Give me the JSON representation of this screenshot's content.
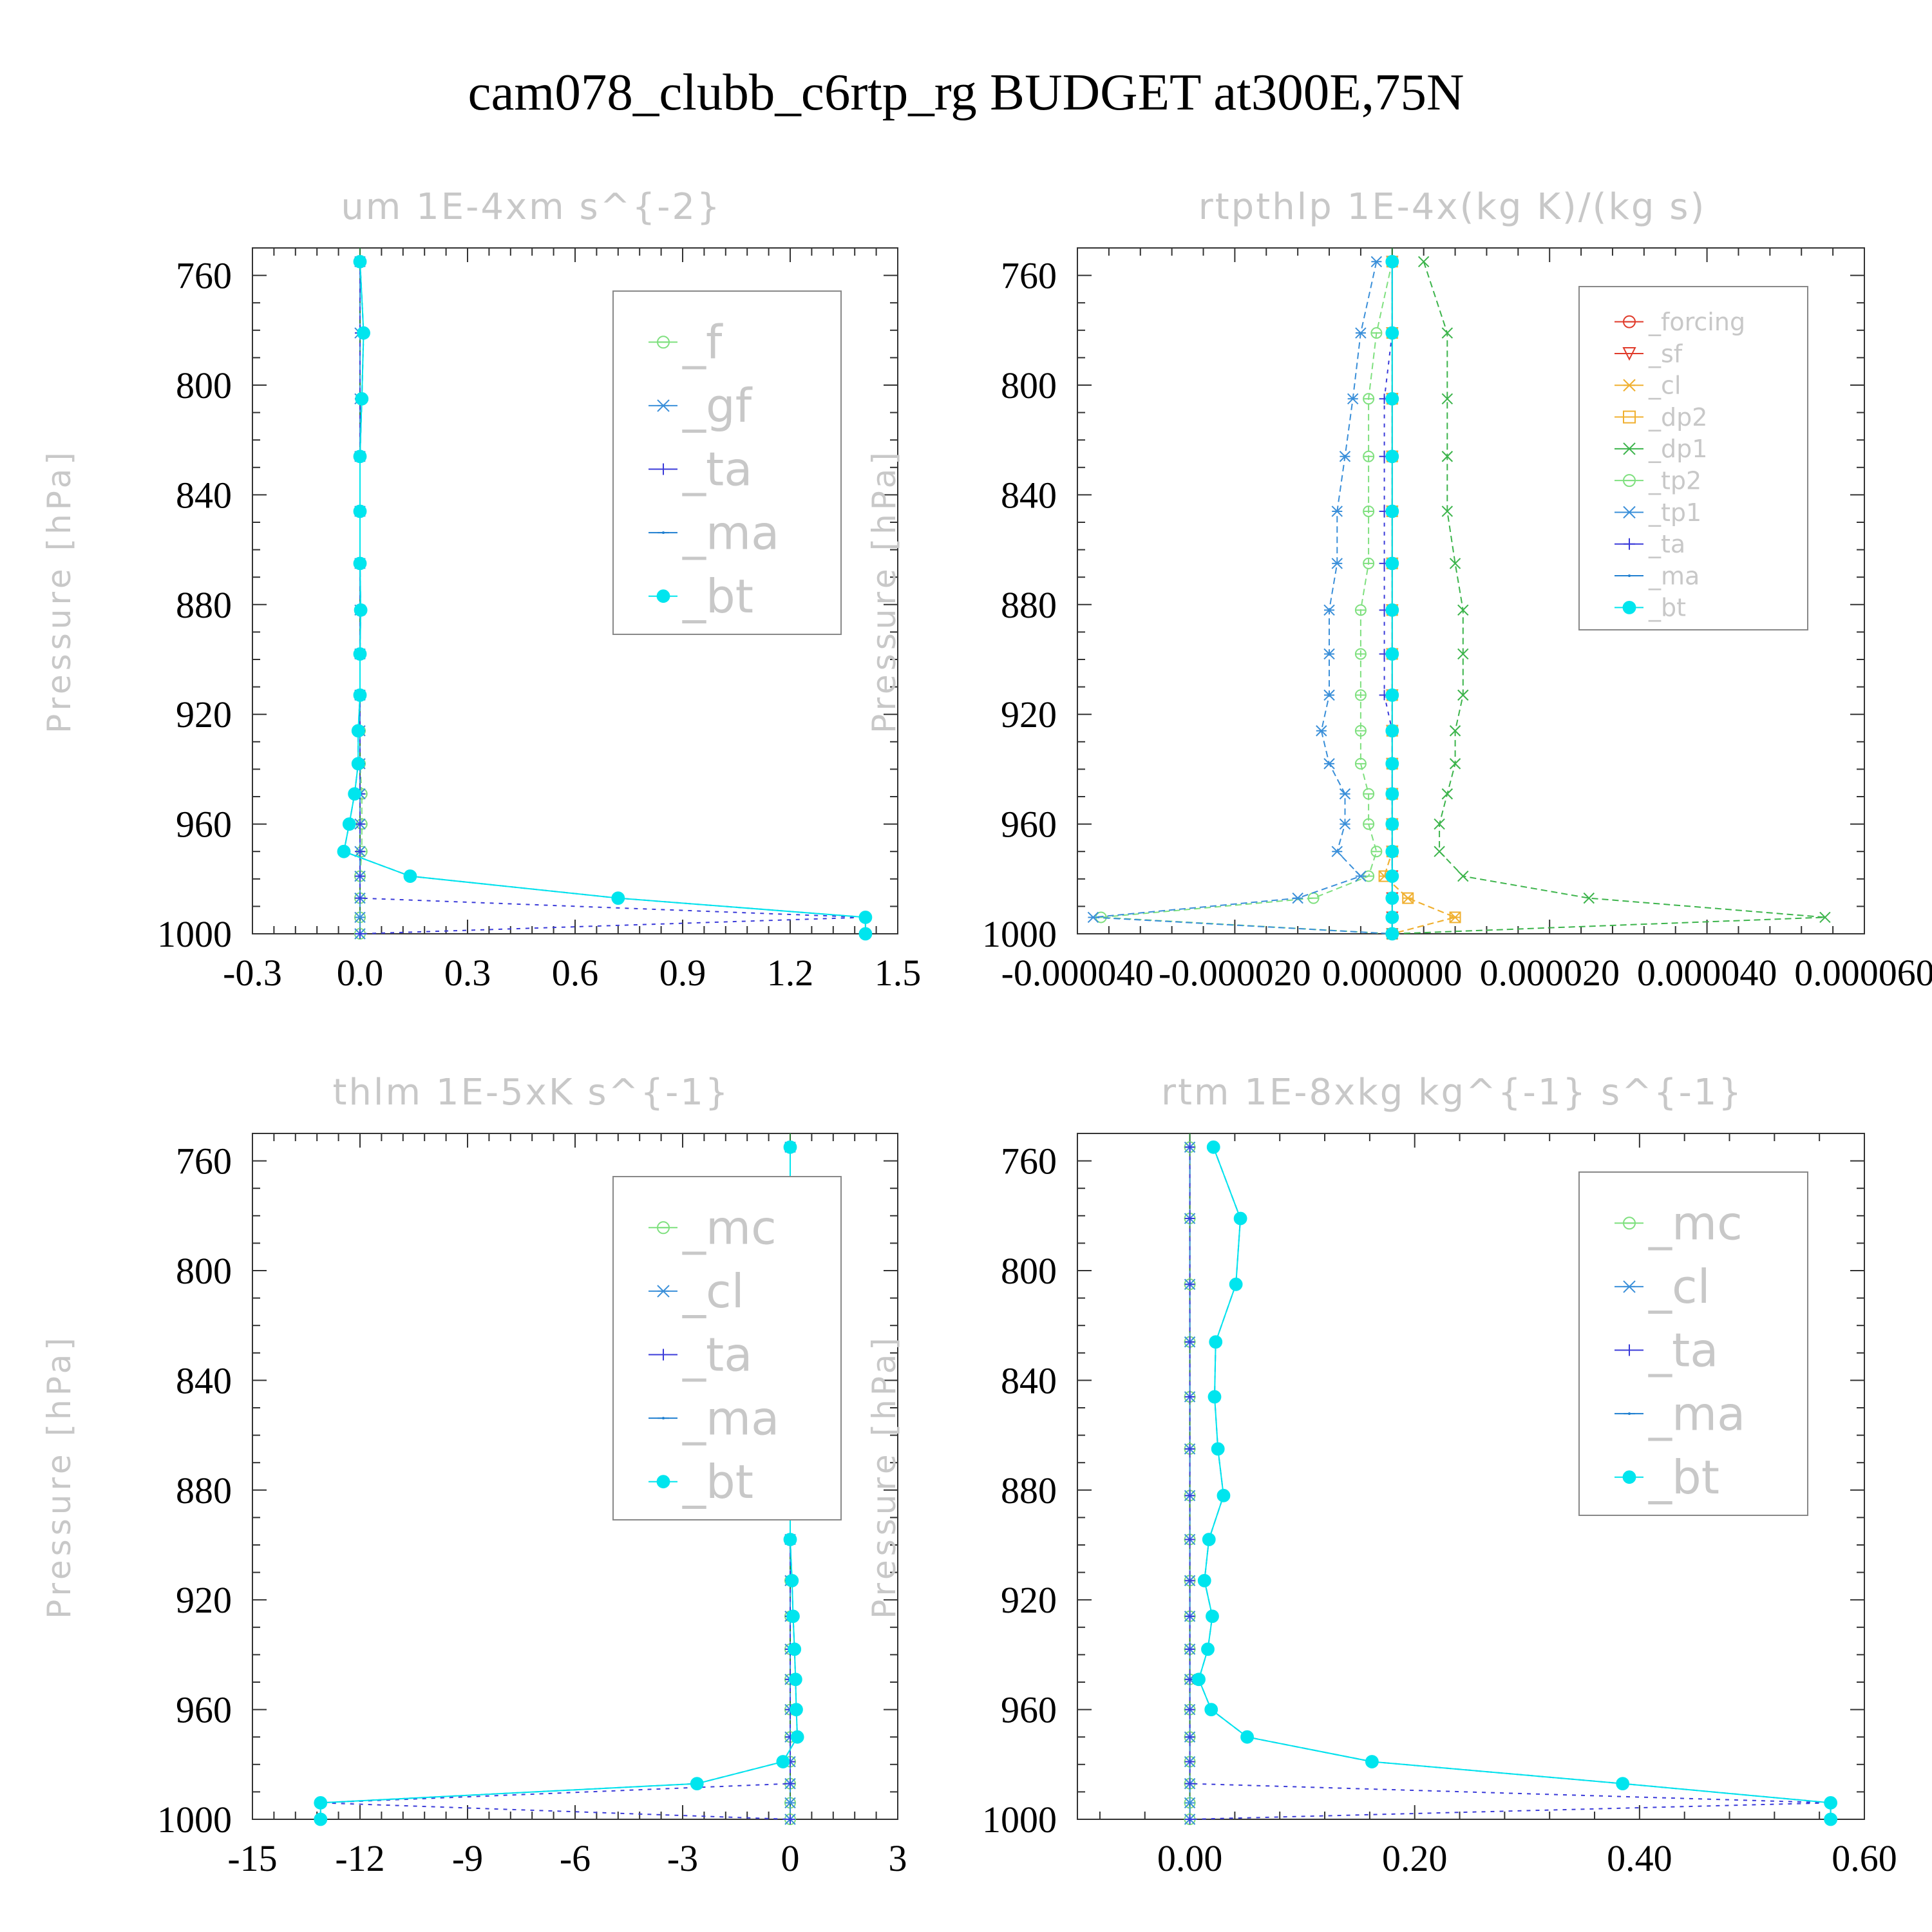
{
  "figure": {
    "title": "cam078_clubb_c6rtp_rg  BUDGET at300E,75N"
  },
  "colors": {
    "f": "#7fe07f",
    "mc": "#7fe07f",
    "gf": "#3a8fd9",
    "cl": "#3a8fd9",
    "ta": "#3b3bd9",
    "ma": "#1f7fd0",
    "bt": "#00e5ee",
    "forcing": "#e03a2a",
    "sf": "#e03a2a",
    "cl_orange": "#f0b030",
    "dp2": "#f0b030",
    "dp1": "#3cb44b",
    "tp2": "#7fe07f",
    "tp1": "#3a8fd9",
    "zero_line": "#2a7f3a"
  },
  "chart_data": [
    {
      "type": "line",
      "title": "um   1E-4xm s^{-2}",
      "ylabel": "Pressure [hPa]",
      "ylim": [
        1000,
        750
      ],
      "yticks": [
        "760",
        "800",
        "840",
        "880",
        "920",
        "960",
        "1000"
      ],
      "xlim": [
        -0.3,
        1.5
      ],
      "xticks": [
        "-0.3",
        "0.0",
        "0.3",
        "0.6",
        "0.9",
        "1.2",
        "1.5"
      ],
      "y": [
        755,
        781,
        805,
        826,
        846,
        865,
        882,
        898,
        913,
        926,
        938,
        949,
        960,
        970,
        979,
        987,
        994,
        1000
      ],
      "series": [
        {
          "name": "_f",
          "values": [
            0,
            0.01,
            0.005,
            0,
            0,
            0,
            0,
            0,
            0,
            0,
            0,
            0.005,
            0.005,
            0.005,
            0,
            0,
            0,
            0
          ]
        },
        {
          "name": "_gf",
          "values": [
            0,
            0,
            0,
            0,
            0,
            0,
            0,
            0,
            0,
            0,
            0,
            0,
            0,
            0,
            0,
            0,
            0,
            0
          ]
        },
        {
          "name": "_ta",
          "values": [
            0,
            0,
            0,
            0,
            0,
            0,
            0,
            0,
            0,
            0,
            0,
            0,
            0,
            0,
            0,
            0,
            1.41,
            0
          ]
        },
        {
          "name": "_ma",
          "values": [
            0,
            0.01,
            0.005,
            0,
            0,
            0,
            0.002,
            0,
            0,
            -0.005,
            -0.005,
            -0.015,
            -0.03,
            -0.045,
            0.14,
            0.72,
            1.41,
            1.41
          ]
        },
        {
          "name": "_bt",
          "values": [
            0,
            0.01,
            0.005,
            0,
            0,
            0,
            0.002,
            0,
            0,
            -0.005,
            -0.005,
            -0.015,
            -0.03,
            -0.045,
            0.14,
            0.72,
            1.41,
            1.41
          ]
        }
      ]
    },
    {
      "type": "line",
      "title": "rtpthlp   1E-4x(kg K)/(kg s)",
      "ylabel": "Pressure [hPa]",
      "ylim": [
        1000,
        750
      ],
      "yticks": [
        "760",
        "800",
        "840",
        "880",
        "920",
        "960",
        "1000"
      ],
      "xlim": [
        -4e-05,
        6e-05
      ],
      "xticks": [
        "-0.000040",
        "-0.000020",
        "0.000000",
        "0.000020",
        "0.000040",
        "0.000060"
      ],
      "y": [
        755,
        781,
        805,
        826,
        846,
        865,
        882,
        898,
        913,
        926,
        938,
        949,
        960,
        970,
        979,
        987,
        994,
        1000
      ],
      "series": [
        {
          "name": "_forcing",
          "values": [
            0,
            0,
            0,
            0,
            0,
            0,
            0,
            0,
            0,
            0,
            0,
            0,
            0,
            0,
            0,
            0,
            0,
            0
          ]
        },
        {
          "name": "_sf",
          "values": [
            0,
            0,
            0,
            0,
            0,
            0,
            0,
            0,
            0,
            0,
            0,
            0,
            0,
            0,
            0,
            0,
            0,
            0
          ]
        },
        {
          "name": "_cl",
          "values": [
            0,
            0,
            0,
            0,
            0,
            0,
            0,
            0,
            0,
            0,
            0,
            0,
            0,
            0,
            -1e-06,
            2e-06,
            8e-06,
            0
          ]
        },
        {
          "name": "_dp2",
          "values": [
            0,
            0,
            0,
            0,
            0,
            0,
            0,
            0,
            0,
            0,
            0,
            0,
            0,
            0,
            -1e-06,
            2e-06,
            8e-06,
            0
          ]
        },
        {
          "name": "_dp1",
          "values": [
            4e-06,
            7e-06,
            7e-06,
            7e-06,
            7e-06,
            8e-06,
            9e-06,
            9e-06,
            9e-06,
            8e-06,
            8e-06,
            7e-06,
            6e-06,
            6e-06,
            9e-06,
            2.5e-05,
            5.5e-05,
            0
          ]
        },
        {
          "name": "_tp2",
          "values": [
            0,
            -2e-06,
            -3e-06,
            -3e-06,
            -3e-06,
            -3e-06,
            -4e-06,
            -4e-06,
            -4e-06,
            -4e-06,
            -4e-06,
            -3e-06,
            -3e-06,
            -2e-06,
            -3e-06,
            -1e-05,
            -3.7e-05,
            0
          ]
        },
        {
          "name": "_tp1",
          "values": [
            -2e-06,
            -4e-06,
            -5e-06,
            -6e-06,
            -7e-06,
            -7e-06,
            -8e-06,
            -8e-06,
            -8e-06,
            -9e-06,
            -8e-06,
            -6e-06,
            -6e-06,
            -7e-06,
            -4e-06,
            -1.2e-05,
            -3.8e-05,
            0
          ]
        },
        {
          "name": "_ta",
          "values": [
            0,
            0,
            -1e-06,
            -1e-06,
            -1e-06,
            -1e-06,
            -1e-06,
            -1e-06,
            -1e-06,
            0,
            0,
            0,
            0,
            0,
            0,
            0,
            0,
            0
          ]
        },
        {
          "name": "_ma",
          "values": [
            0,
            0,
            0,
            0,
            0,
            0,
            0,
            0,
            0,
            0,
            0,
            0,
            0,
            0,
            0,
            0,
            0,
            0
          ]
        },
        {
          "name": "_bt",
          "values": [
            0,
            0,
            0,
            0,
            0,
            0,
            0,
            0,
            0,
            0,
            0,
            0,
            0,
            0,
            0,
            0,
            0,
            0
          ]
        }
      ]
    },
    {
      "type": "line",
      "title": "thlm   1E-5xK s^{-1}",
      "ylabel": "Pressure [hPa]",
      "ylim": [
        1000,
        750
      ],
      "yticks": [
        "760",
        "800",
        "840",
        "880",
        "920",
        "960",
        "1000"
      ],
      "xlim": [
        -15,
        3
      ],
      "xticks": [
        "-15",
        "-12",
        "-9",
        "-6",
        "-3",
        "0",
        "3"
      ],
      "y": [
        755,
        781,
        805,
        826,
        846,
        865,
        882,
        898,
        913,
        926,
        938,
        949,
        960,
        970,
        979,
        987,
        994,
        1000
      ],
      "series": [
        {
          "name": "_mc",
          "values": [
            0,
            0,
            0,
            0,
            0,
            0,
            0,
            0,
            0,
            0,
            0,
            0,
            0,
            0,
            0,
            0,
            0,
            0
          ]
        },
        {
          "name": "_cl",
          "values": [
            0,
            0,
            0,
            0,
            0,
            0,
            0,
            0,
            0,
            0,
            0,
            0,
            0,
            0,
            0,
            0,
            0,
            0
          ]
        },
        {
          "name": "_ta",
          "values": [
            0,
            0,
            0,
            0,
            0,
            0,
            0,
            0,
            0,
            0,
            0,
            0,
            0,
            0,
            0,
            0,
            -13.1,
            0
          ]
        },
        {
          "name": "_ma",
          "values": [
            0,
            0,
            0,
            0,
            0,
            0,
            0,
            0,
            0.05,
            0.08,
            0.12,
            0.15,
            0.17,
            0.2,
            -0.2,
            -2.6,
            -13.1,
            -13.1
          ]
        },
        {
          "name": "_bt",
          "values": [
            0,
            0,
            0,
            0,
            0,
            0,
            0,
            0,
            0.05,
            0.08,
            0.12,
            0.15,
            0.17,
            0.2,
            -0.2,
            -2.6,
            -13.1,
            -13.1
          ]
        }
      ]
    },
    {
      "type": "line",
      "title": "rtm   1E-8xkg kg^{-1} s^{-1}",
      "ylabel": "Pressure [hPa]",
      "ylim": [
        1000,
        750
      ],
      "yticks": [
        "760",
        "800",
        "840",
        "880",
        "920",
        "960",
        "1000"
      ],
      "xlim": [
        -0.1,
        0.6
      ],
      "xticks": [
        "0.00",
        "0.20",
        "0.40",
        "0.60"
      ],
      "y": [
        755,
        781,
        805,
        826,
        846,
        865,
        882,
        898,
        913,
        926,
        938,
        949,
        960,
        970,
        979,
        987,
        994,
        1000
      ],
      "series": [
        {
          "name": "_mc",
          "values": [
            0,
            0,
            0,
            0,
            0,
            0,
            0,
            0,
            0,
            0,
            0,
            0,
            0,
            0,
            0,
            0,
            0,
            0
          ]
        },
        {
          "name": "_cl",
          "values": [
            0,
            0,
            0,
            0,
            0,
            0,
            0,
            0,
            0,
            0,
            0,
            0,
            0,
            0,
            0,
            0,
            0,
            0
          ]
        },
        {
          "name": "_ta",
          "values": [
            0,
            0,
            0,
            0,
            0,
            0,
            0,
            0,
            0,
            0,
            0,
            0,
            0,
            0,
            0,
            0,
            0.57,
            0
          ]
        },
        {
          "name": "_ma",
          "values": [
            0.021,
            0.045,
            0.041,
            0.023,
            0.022,
            0.025,
            0.03,
            0.017,
            0.013,
            0.02,
            0.016,
            0.008,
            0.019,
            0.051,
            0.162,
            0.385,
            0.57,
            0.57
          ]
        },
        {
          "name": "_bt",
          "values": [
            0.021,
            0.045,
            0.041,
            0.023,
            0.022,
            0.025,
            0.03,
            0.017,
            0.013,
            0.02,
            0.016,
            0.008,
            0.019,
            0.051,
            0.162,
            0.385,
            0.57,
            0.57
          ]
        }
      ]
    }
  ]
}
